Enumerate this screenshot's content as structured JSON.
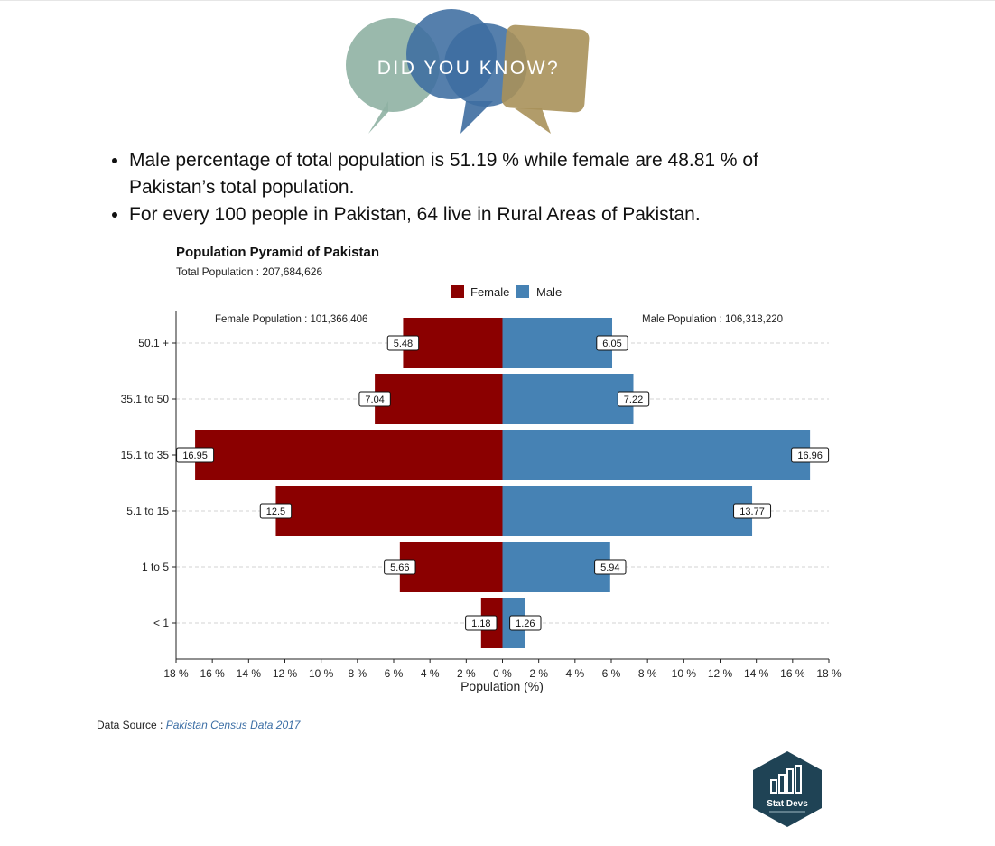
{
  "banner": {
    "text": "DID YOU KNOW?"
  },
  "facts": [
    "Male percentage of total population is 51.19 % while female are 48.81 % of Pakistan’s total population.",
    "For every 100 people in Pakistan, 64 live in Rural Areas of Pakistan."
  ],
  "colors": {
    "female": "#8b0000",
    "male": "#4682b4",
    "link": "#3b6ea5"
  },
  "chart_data": {
    "type": "bar",
    "orientation": "horizontal-pyramid",
    "title": "Population Pyramid of Pakistan",
    "subtitle": "Total Population : 207,684,626",
    "xlabel": "Population (%)",
    "categories": [
      "50.1 +",
      "35.1 to 50",
      "15.1 to 35",
      "5.1 to 15",
      "1 to 5",
      "< 1"
    ],
    "series": [
      {
        "name": "Female",
        "values": [
          5.48,
          7.04,
          16.95,
          12.5,
          5.66,
          1.18
        ]
      },
      {
        "name": "Male",
        "values": [
          6.05,
          7.22,
          16.96,
          13.77,
          5.94,
          1.26
        ]
      }
    ],
    "value_labels": {
      "female": [
        "5.48",
        "7.04",
        "16.95",
        "12.5",
        "5.66",
        "1.18"
      ],
      "male": [
        "6.05",
        "7.22",
        "16.96",
        "13.77",
        "5.94",
        "1.26"
      ]
    },
    "xlim": [
      -18,
      18
    ],
    "xticks": [
      "18 %",
      "16 %",
      "14 %",
      "12 %",
      "10 %",
      "8 %",
      "6 %",
      "4 %",
      "2 %",
      "0 %",
      "2 %",
      "4 %",
      "6 %",
      "8 %",
      "10 %",
      "12 %",
      "14 %",
      "16 %",
      "18 %"
    ],
    "annotations": {
      "female": "Female Population : 101,366,406",
      "male": "Male Population : 106,318,220"
    },
    "legend": {
      "position": "top",
      "entries": [
        "Female",
        "Male"
      ]
    },
    "grid": "horizontal-dashed"
  },
  "source": {
    "label": "Data Source :",
    "link_text": "Pakistan Census Data 2017"
  },
  "logo": {
    "name": "Stat Devs",
    "icon": "bar-chart-icon"
  }
}
